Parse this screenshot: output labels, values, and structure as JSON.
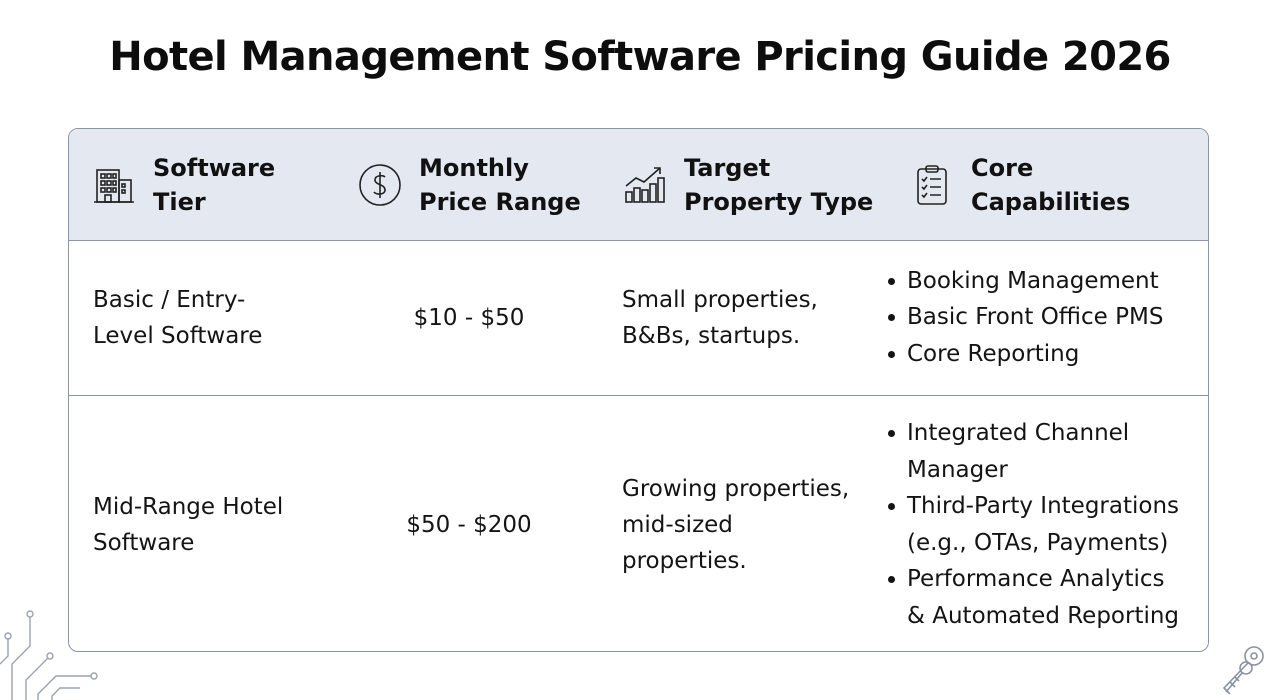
{
  "page": {
    "title": "Hotel Management Software Pricing Guide 2026"
  },
  "table": {
    "headers": [
      {
        "icon": "building-icon",
        "label": "Software\nTier"
      },
      {
        "icon": "dollar-coin-icon",
        "label": "Monthly\nPrice Range"
      },
      {
        "icon": "growth-chart-icon",
        "label": "Target\nProperty Type"
      },
      {
        "icon": "checklist-icon",
        "label": "Core\nCapabilities"
      }
    ],
    "rows": [
      {
        "tier": "Basic / Entry-\nLevel Software",
        "price": "$10 - $50",
        "property_type": "Small properties,\nB&Bs, startups.",
        "capabilities": [
          "Booking Management",
          "Basic Front Office PMS",
          "Core Reporting"
        ]
      },
      {
        "tier": "Mid-Range Hotel\nSoftware",
        "price": "$50 - $200",
        "property_type": "Growing properties,\nmid-sized\nproperties.",
        "capabilities": [
          "Integrated Channel\nManager",
          "Third-Party Integrations\n(e.g., OTAs, Payments)",
          "Performance Analytics\n& Automated Reporting"
        ]
      }
    ]
  },
  "colors": {
    "header_bg": "#e4e8f1",
    "border": "#8a95a6",
    "text": "#111111"
  }
}
